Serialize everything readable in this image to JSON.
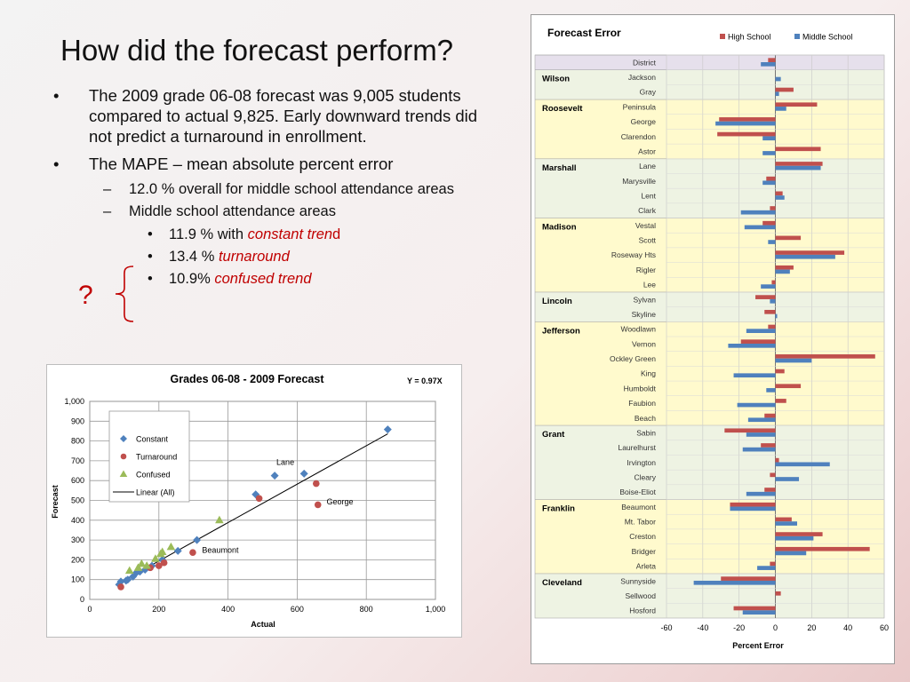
{
  "slide": {
    "title": "How did the forecast perform?",
    "bullet1": "The 2009 grade 06-08 forecast was 9,005 students compared to actual 9,825. Early downward trends did not predict a turnaround in enrollment.",
    "bullet2": "The MAPE – mean absolute percent error",
    "sub1": "12.0 % overall for middle school attendance areas",
    "sub2": "Middle school attendance areas",
    "item1_pre": "11.9 % with ",
    "item1_em": "constant tren",
    "item1_post": "d",
    "item2_pre": "13.4 % ",
    "item2_em": "turnaround",
    "item3_pre": "10.9% ",
    "item3_em": "confused trend",
    "qmark": "?"
  },
  "chart_data": [
    {
      "type": "scatter",
      "title": "Grades 06-08   -   2009 Forecast",
      "equation": "Y = 0.97X",
      "xlabel": "Actual",
      "ylabel": "Forecast",
      "xlim": [
        0,
        1000
      ],
      "ylim": [
        0,
        1000
      ],
      "xticks": [
        0,
        200,
        400,
        600,
        800,
        1000
      ],
      "xtick_labels": [
        "0",
        "200",
        "400",
        "600",
        "800",
        "1,000"
      ],
      "yticks": [
        0,
        100,
        200,
        300,
        400,
        500,
        600,
        700,
        800,
        900,
        1000
      ],
      "ytick_labels": [
        "0",
        "100",
        "200",
        "300",
        "400",
        "500",
        "600",
        "700",
        "800",
        "900",
        "1,000"
      ],
      "grid": true,
      "legend": "top-left",
      "series": [
        {
          "name": "Constant",
          "marker": "diamond",
          "color": "#4f81bd",
          "points": [
            [
              85,
              75
            ],
            [
              90,
              90
            ],
            [
              105,
              95
            ],
            [
              110,
              100
            ],
            [
              125,
              115
            ],
            [
              135,
              135
            ],
            [
              145,
              140
            ],
            [
              160,
              150
            ],
            [
              180,
              170
            ],
            [
              210,
              200
            ],
            [
              255,
              245
            ],
            [
              310,
              300
            ],
            [
              480,
              530
            ],
            [
              535,
              625
            ],
            [
              620,
              635
            ],
            [
              862,
              858
            ]
          ]
        },
        {
          "name": "Turnaround",
          "marker": "circle",
          "color": "#c0504d",
          "points": [
            [
              90,
              63
            ],
            [
              175,
              160
            ],
            [
              200,
              170
            ],
            [
              215,
              185
            ],
            [
              298,
              237
            ],
            [
              490,
              510
            ],
            [
              655,
              585
            ],
            [
              660,
              478
            ]
          ]
        },
        {
          "name": "Confused",
          "marker": "triangle",
          "color": "#9bbb59",
          "points": [
            [
              115,
              145
            ],
            [
              140,
              160
            ],
            [
              150,
              180
            ],
            [
              165,
              170
            ],
            [
              190,
              205
            ],
            [
              205,
              230
            ],
            [
              210,
              240
            ],
            [
              235,
              265
            ],
            [
              375,
              400
            ]
          ]
        },
        {
          "name": "Linear (All)",
          "marker": "line",
          "color": "#000000",
          "line": [
            [
              75,
              72.75
            ],
            [
              862,
              836.14
            ]
          ]
        }
      ],
      "annotations": [
        {
          "text": "Lane",
          "x": 540,
          "y": 680
        },
        {
          "text": "George",
          "x": 685,
          "y": 480
        },
        {
          "text": "Beaumont",
          "x": 325,
          "y": 235
        }
      ]
    },
    {
      "type": "bar",
      "orientation": "horizontal",
      "title": "Forecast Error",
      "xlabel": "Percent Error",
      "xlim": [
        -60,
        60
      ],
      "xticks": [
        -60,
        -40,
        -20,
        0,
        20,
        40,
        60
      ],
      "legend": "top-right",
      "series_names": [
        "High School",
        "Middle School"
      ],
      "series_colors": [
        "#c0504d",
        "#4f81bd"
      ],
      "groups": [
        {
          "name": "",
          "fill": "#e6e0ec",
          "rows": [
            {
              "label": "District",
              "hs": -4,
              "ms": -8
            }
          ]
        },
        {
          "name": "Wilson",
          "fill": "#eef3e3",
          "rows": [
            {
              "label": "Jackson",
              "hs": 0,
              "ms": 3
            },
            {
              "label": "Gray",
              "hs": 10,
              "ms": 2
            }
          ]
        },
        {
          "name": "Roosevelt",
          "fill": "#fffacd",
          "rows": [
            {
              "label": "Peninsula",
              "hs": 23,
              "ms": 6
            },
            {
              "label": "George",
              "hs": -31,
              "ms": -33
            },
            {
              "label": "Clarendon",
              "hs": -32,
              "ms": -7
            },
            {
              "label": "Astor",
              "hs": 25,
              "ms": -7
            }
          ]
        },
        {
          "name": "Marshall",
          "fill": "#eef3e3",
          "rows": [
            {
              "label": "Lane",
              "hs": 26,
              "ms": 25
            },
            {
              "label": "Marysville",
              "hs": -5,
              "ms": -7
            },
            {
              "label": "Lent",
              "hs": 4,
              "ms": 5
            },
            {
              "label": "Clark",
              "hs": -3,
              "ms": -19
            }
          ]
        },
        {
          "name": "Madison",
          "fill": "#fffacd",
          "rows": [
            {
              "label": "Vestal",
              "hs": -7,
              "ms": -17
            },
            {
              "label": "Scott",
              "hs": 14,
              "ms": -4
            },
            {
              "label": "Roseway Hts",
              "hs": 38,
              "ms": 33
            },
            {
              "label": "Rigler",
              "hs": 10,
              "ms": 8
            },
            {
              "label": "Lee",
              "hs": -2,
              "ms": -8
            }
          ]
        },
        {
          "name": "Lincoln",
          "fill": "#eef3e3",
          "rows": [
            {
              "label": "Sylvan",
              "hs": -11,
              "ms": -3
            },
            {
              "label": "Skyline",
              "hs": -6,
              "ms": 1
            }
          ]
        },
        {
          "name": "Jefferson",
          "fill": "#fffacd",
          "rows": [
            {
              "label": "Woodlawn",
              "hs": -4,
              "ms": -16
            },
            {
              "label": "Vernon",
              "hs": -19,
              "ms": -26
            },
            {
              "label": "Ockley Green",
              "hs": 55,
              "ms": 20
            },
            {
              "label": "King",
              "hs": 5,
              "ms": -23
            },
            {
              "label": "Humboldt",
              "hs": 14,
              "ms": -5
            },
            {
              "label": "Faubion",
              "hs": 6,
              "ms": -21
            },
            {
              "label": "Beach",
              "hs": -6,
              "ms": -15
            }
          ]
        },
        {
          "name": "Grant",
          "fill": "#eef3e3",
          "rows": [
            {
              "label": "Sabin",
              "hs": -28,
              "ms": -16
            },
            {
              "label": "Laurelhurst",
              "hs": -8,
              "ms": -18
            },
            {
              "label": "Irvington",
              "hs": 2,
              "ms": 30
            },
            {
              "label": "Cleary",
              "hs": -3,
              "ms": 13
            },
            {
              "label": "Boise-Eliot",
              "hs": -6,
              "ms": -16
            }
          ]
        },
        {
          "name": "Franklin",
          "fill": "#fffacd",
          "rows": [
            {
              "label": "Beaumont",
              "hs": -25,
              "ms": -25
            },
            {
              "label": "Mt. Tabor",
              "hs": 9,
              "ms": 12
            },
            {
              "label": "Creston",
              "hs": 26,
              "ms": 21
            },
            {
              "label": "Bridger",
              "hs": 52,
              "ms": 17
            },
            {
              "label": "Arleta",
              "hs": -3,
              "ms": -10
            }
          ]
        },
        {
          "name": "Cleveland",
          "fill": "#eef3e3",
          "rows": [
            {
              "label": "Sunnyside",
              "hs": -30,
              "ms": -45
            },
            {
              "label": "Sellwood",
              "hs": 3,
              "ms": 0
            },
            {
              "label": "Hosford",
              "hs": -23,
              "ms": -18
            }
          ]
        }
      ]
    }
  ]
}
